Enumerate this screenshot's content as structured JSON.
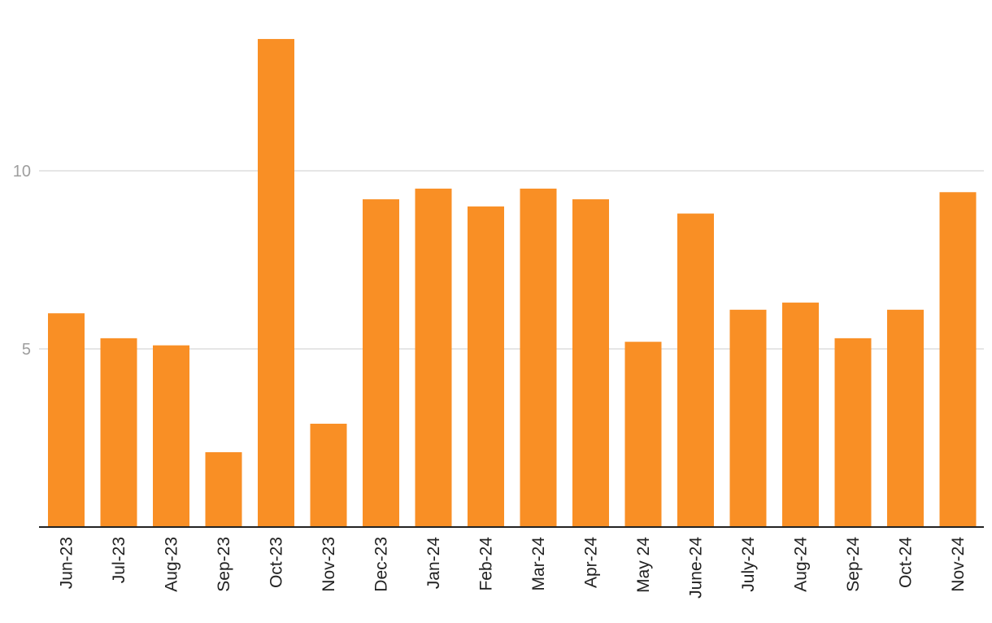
{
  "chart_data": {
    "type": "bar",
    "categories": [
      "Jun-23",
      "Jul-23",
      "Aug-23",
      "Sep-23",
      "Oct-23",
      "Nov-23",
      "Dec-23",
      "Jan-24",
      "Feb-24",
      "Mar-24",
      "Apr-24",
      "May 24",
      "June-24",
      "July-24",
      "Aug-24",
      "Sep-24",
      "Oct-24",
      "Nov-24"
    ],
    "values": [
      6.0,
      5.3,
      5.1,
      2.1,
      13.7,
      2.9,
      9.2,
      9.5,
      9.0,
      9.5,
      9.2,
      5.2,
      8.8,
      6.1,
      6.3,
      5.3,
      6.1,
      9.4
    ],
    "title": "",
    "xlabel": "",
    "ylabel": "",
    "ylim": [
      0,
      14.5
    ],
    "yticks": [
      5,
      10
    ],
    "grid": true,
    "legend": "none",
    "colors": {
      "bar": "#F98F25",
      "grid": "#dddddd",
      "axis": "#222222",
      "tick_y": "#9e9e9e",
      "tick_x": "#222222"
    }
  }
}
